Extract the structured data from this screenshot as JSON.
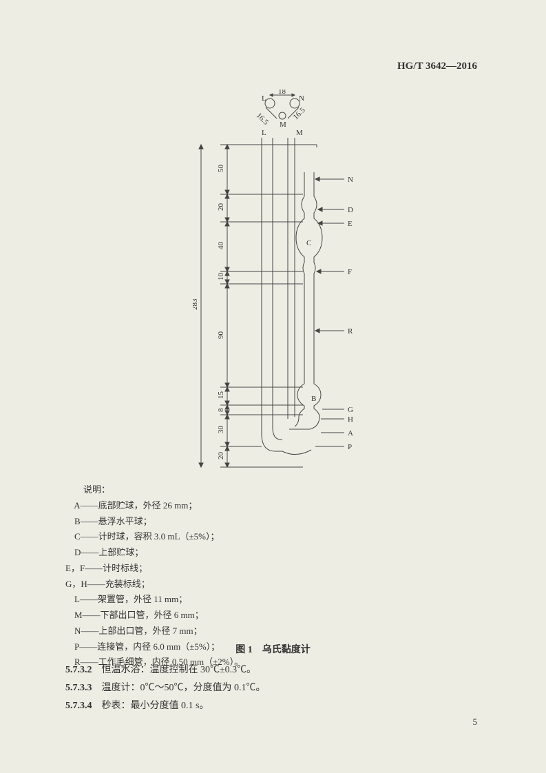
{
  "header": {
    "code": "HG/T 3642—2016"
  },
  "diagram": {
    "top": {
      "dim18": "18",
      "dim16_5a": "16.5",
      "dim16_5b": "16.5",
      "L": "L",
      "N": "N",
      "M": "M"
    },
    "left": {
      "dim283": "283",
      "dim50": "50",
      "dim20u": "20",
      "dim40": "40",
      "dim10": "10",
      "dim90": "90",
      "dim15": "15",
      "dim8": "8",
      "dim30": "30",
      "dim20b": "20"
    },
    "tube_labels": {
      "L": "L",
      "M": "M"
    },
    "right": {
      "N": "N",
      "D": "D",
      "E": "E",
      "C": "C",
      "F": "F",
      "R": "R",
      "B": "B",
      "G": "G",
      "H": "H",
      "A": "A",
      "P": "P"
    }
  },
  "legend": {
    "title": "说明：",
    "items": [
      {
        "prefix": "    A——",
        "text": "底部贮球，外径 26 mm；"
      },
      {
        "prefix": "    B——",
        "text": "悬浮水平球；"
      },
      {
        "prefix": "    C——",
        "text": "计时球，容积 3.0 mL（±5%）；"
      },
      {
        "prefix": "    D——",
        "text": "上部贮球；"
      },
      {
        "prefix": "E，F——",
        "text": "计时标线；"
      },
      {
        "prefix": "G，H——",
        "text": "充装标线；"
      },
      {
        "prefix": "    L——",
        "text": "架置管，外径 11 mm；"
      },
      {
        "prefix": "    M——",
        "text": "下部出口管，外径 6 mm；"
      },
      {
        "prefix": "    N——",
        "text": "上部出口管，外径 7 mm；"
      },
      {
        "prefix": "    P——",
        "text": "连接管，内径 6.0 mm（±5%）；"
      },
      {
        "prefix": "    R——",
        "text": "工作毛细管，内径 0.50 mm（±2%）。"
      }
    ]
  },
  "figure_caption": "图 1　乌氏黏度计",
  "sections": [
    {
      "num": "5.7.3.2",
      "text": "　恒温水浴：温度控制在 30℃±0.3℃。"
    },
    {
      "num": "5.7.3.3",
      "text": "　温度计：0℃～50℃，分度值为 0.1℃。"
    },
    {
      "num": "5.7.3.4",
      "text": "　秒表：最小分度值 0.1 s。"
    }
  ],
  "page_number": "5",
  "colors": {
    "stroke": "#444",
    "text": "#333"
  }
}
